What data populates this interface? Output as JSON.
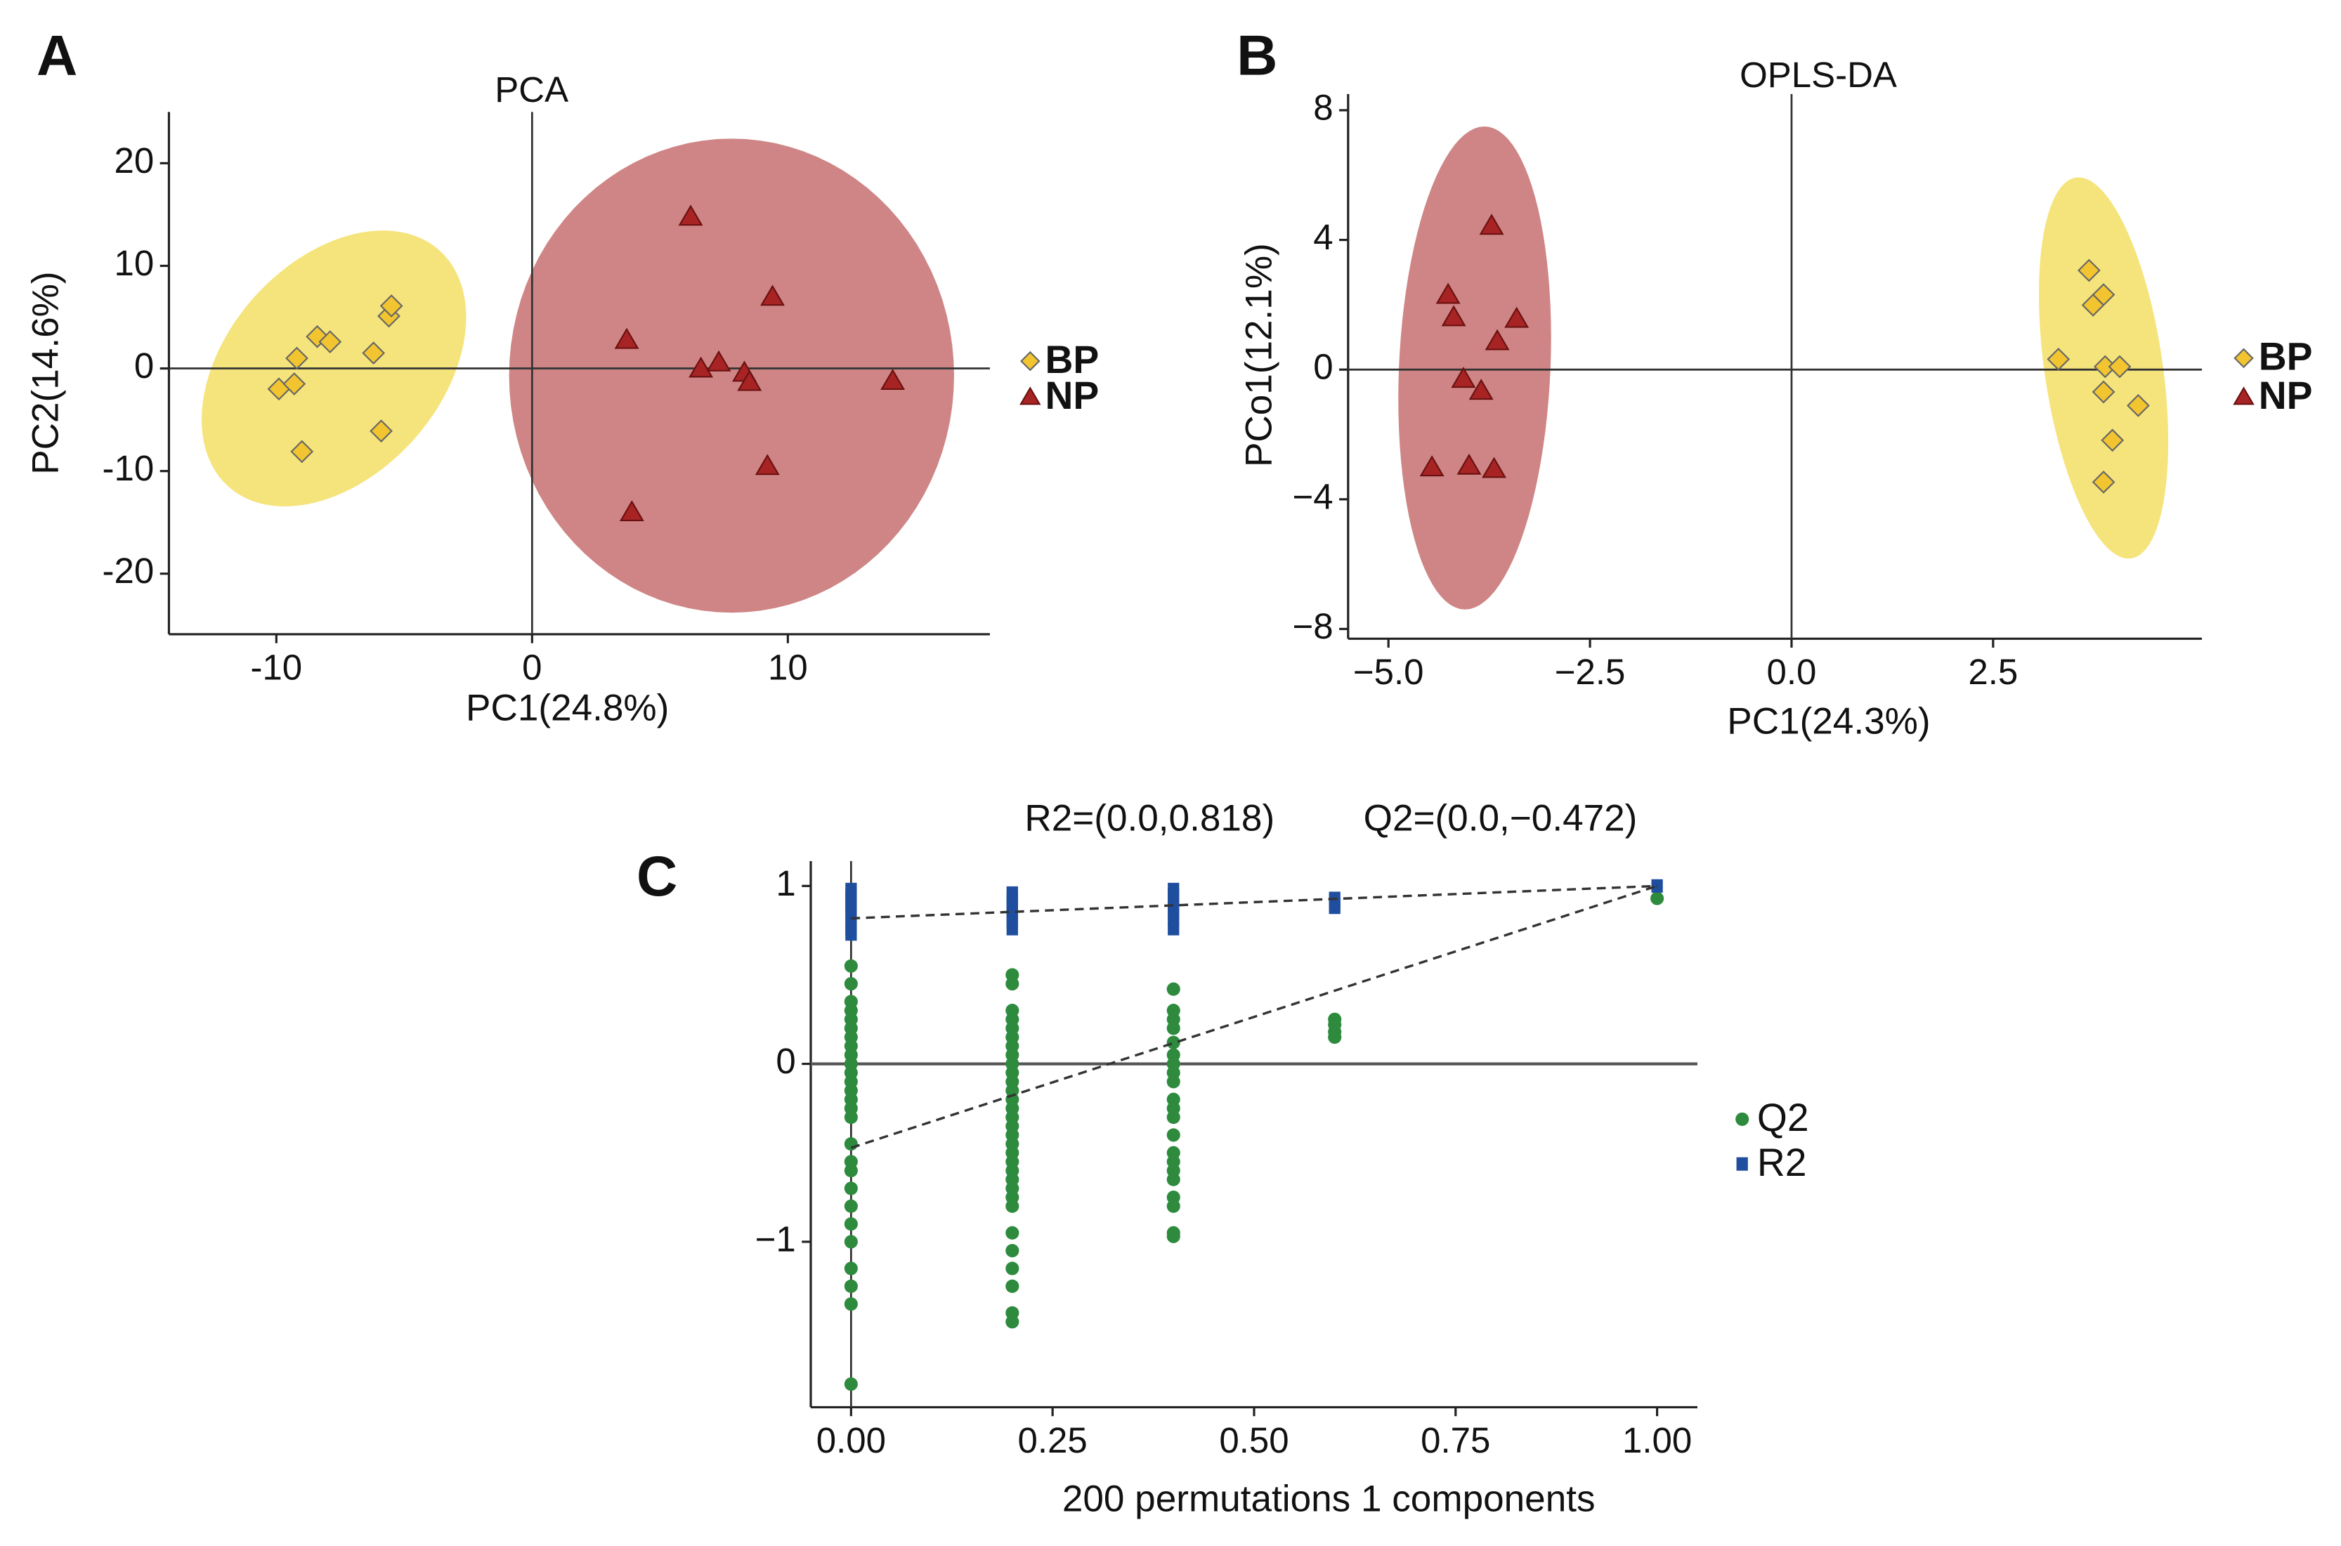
{
  "chart_data": [
    {
      "type": "scatter",
      "panel": "A",
      "title": "PCA",
      "x_label": "PC1(24.8%)",
      "y_label": "PC2(14.6%)",
      "xlim": [
        -14.2,
        17.9
      ],
      "ylim": [
        -25.9,
        25.0
      ],
      "xticks": [
        -10,
        0,
        10
      ],
      "yticks": [
        -20,
        -10,
        0,
        10,
        20
      ],
      "zero_lines": true,
      "legend": "right",
      "series": [
        {
          "name": "BP",
          "marker": "diamond",
          "color": "#f2c530",
          "ellipse_color": "#f5e47c",
          "ellipse": {
            "center": [
              -7.75,
              0
            ],
            "axis1": [
              4.5,
              10.5
            ],
            "axis2": [
              2.55,
              -8.4
            ]
          },
          "x": [
            -9.9,
            -9.3,
            -9.2,
            -8.4,
            -7.9,
            -6.2,
            -5.6,
            -5.5,
            -5.9,
            -9.0
          ],
          "values": [
            -2.0,
            -1.5,
            1.0,
            3.1,
            2.6,
            1.5,
            5.1,
            6.1,
            -6.1,
            -8.1
          ]
        },
        {
          "name": "NP",
          "marker": "triangle",
          "color": "#a82424",
          "ellipse_color": "#cf8585",
          "ellipse": {
            "center": [
              7.8,
              -0.7
            ],
            "axis1": [
              8.7,
              0
            ],
            "axis2": [
              0,
              23.1
            ]
          },
          "x": [
            6.2,
            3.7,
            9.4,
            6.6,
            7.3,
            8.3,
            8.5,
            14.1,
            9.2,
            3.9
          ],
          "values": [
            14.8,
            2.8,
            7.0,
            0,
            0.6,
            -0.4,
            -1.3,
            -1.2,
            -9.5,
            -14.0
          ]
        }
      ]
    },
    {
      "type": "scatter",
      "panel": "B",
      "title": "OPLS-DA",
      "x_label": "PC1(24.3%)",
      "y_label": "PCo1(12.1%)",
      "xlim": [
        -5.5,
        5.09
      ],
      "ylim": [
        -8.3,
        8.5
      ],
      "xticks": [
        {
          "value": -5,
          "label": "−5.0"
        },
        {
          "value": -2.5,
          "label": "−2.5"
        },
        {
          "value": 0,
          "label": "0.0"
        },
        {
          "value": 2.5,
          "label": "2.5"
        }
      ],
      "yticks": [
        {
          "value": -8,
          "label": "−8"
        },
        {
          "value": -4,
          "label": "−4"
        },
        0,
        4,
        8
      ],
      "zero_lines": true,
      "legend": "right",
      "series": [
        {
          "name": "BP",
          "marker": "diamond",
          "color": "#f2c530",
          "ellipse_color": "#f5e47c",
          "ellipse": {
            "center": [
              3.87,
              0.05
            ],
            "axis1": [
              0.74,
              0
            ],
            "axis2": [
              -0.31,
              5.88
            ]
          },
          "x": [
            3.69,
            3.74,
            3.87,
            3.31,
            3.89,
            4.07,
            3.87,
            4.3,
            3.98,
            3.87
          ],
          "values": [
            3.06,
            1.99,
            2.31,
            0.32,
            0.09,
            0.09,
            -0.69,
            -1.11,
            -2.18,
            -3.47
          ]
        },
        {
          "name": "NP",
          "marker": "triangle",
          "color": "#a82424",
          "ellipse_color": "#cf8585",
          "ellipse": {
            "center": [
              -3.93,
              0.05
            ],
            "axis1": [
              0.94,
              0
            ],
            "axis2": [
              0.12,
              7.45
            ]
          },
          "x": [
            -3.72,
            -4.26,
            -4.19,
            -3.41,
            -3.65,
            -4.07,
            -3.85,
            -4.46,
            -4.0,
            -3.69
          ],
          "values": [
            4.44,
            2.31,
            1.62,
            1.57,
            0.88,
            -0.28,
            -0.65,
            -3.01,
            -2.96,
            -3.06
          ]
        }
      ]
    },
    {
      "type": "scatter",
      "panel": "C",
      "annotations": [
        "R2=(0.0,0.818)",
        "Q2=(0.0,−0.472)"
      ],
      "x_label": "200 permutations 1 components",
      "xlim": [
        -0.05,
        1.05
      ],
      "ylim": [
        -1.93,
        1.14
      ],
      "xticks": [
        {
          "value": 0,
          "label": "0.00"
        },
        {
          "value": 0.25,
          "label": "0.25"
        },
        {
          "value": 0.5,
          "label": "0.50"
        },
        {
          "value": 0.75,
          "label": "0.75"
        },
        {
          "value": 1,
          "label": "1.00"
        }
      ],
      "yticks": [
        {
          "value": -1,
          "label": "−1"
        },
        0,
        1
      ],
      "zero_lines": true,
      "legend": "right",
      "fit_lines": [
        {
          "x": [
            0,
            1
          ],
          "y": [
            0.818,
            1
          ]
        },
        {
          "x": [
            0,
            1
          ],
          "y": [
            -0.472,
            1
          ]
        }
      ],
      "series": [
        {
          "name": "Q2",
          "marker": "circle",
          "color": "#2e8b3e",
          "x": [
            0,
            0,
            0,
            0,
            0,
            0,
            0,
            0,
            0,
            0,
            0,
            0,
            0,
            0,
            0,
            0,
            0,
            0,
            0,
            0,
            0,
            0,
            0,
            0,
            0,
            0,
            0,
            0.2,
            0.2,
            0.2,
            0.2,
            0.2,
            0.2,
            0.2,
            0.2,
            0.2,
            0.2,
            0.2,
            0.2,
            0.2,
            0.2,
            0.2,
            0.2,
            0.2,
            0.2,
            0.2,
            0.2,
            0.2,
            0.2,
            0.2,
            0.2,
            0.2,
            0.2,
            0.2,
            0.2,
            0.2,
            0.2,
            0.2,
            0.4,
            0.4,
            0.4,
            0.4,
            0.4,
            0.4,
            0.4,
            0.4,
            0.4,
            0.4,
            0.4,
            0.4,
            0.4,
            0.4,
            0.4,
            0.4,
            0.4,
            0.4,
            0.4,
            0.4,
            0.4,
            0.6,
            0.6,
            0.6,
            0.6,
            1
          ],
          "values": [
            0.55,
            0.45,
            0.35,
            0.3,
            0.25,
            0.2,
            0.15,
            0.1,
            0.05,
            0.0,
            -0.05,
            -0.1,
            -0.15,
            -0.2,
            -0.25,
            -0.3,
            -0.45,
            -0.55,
            -0.6,
            -0.7,
            -0.8,
            -0.9,
            -1.0,
            -1.15,
            -1.25,
            -1.35,
            -1.8,
            0.5,
            0.45,
            0.3,
            0.25,
            0.2,
            0.15,
            0.1,
            0.05,
            0,
            -0.05,
            -0.1,
            -0.15,
            -0.2,
            -0.25,
            -0.3,
            -0.35,
            -0.4,
            -0.45,
            -0.5,
            -0.55,
            -0.6,
            -0.65,
            -0.7,
            -0.75,
            -0.8,
            -0.95,
            -1.05,
            -1.15,
            -1.25,
            -1.4,
            -1.45,
            0.42,
            0.3,
            0.25,
            0.2,
            0.12,
            0.05,
            0,
            -0.05,
            -0.1,
            -0.2,
            -0.25,
            -0.3,
            -0.4,
            -0.5,
            -0.55,
            -0.6,
            -0.65,
            -0.75,
            -0.8,
            -0.95,
            -0.97,
            0.25,
            0.22,
            0.18,
            0.15,
            0.93
          ]
        },
        {
          "name": "R2",
          "marker": "square",
          "color": "#1f4e9e",
          "x": [
            0,
            0,
            0,
            0,
            0,
            0,
            0,
            0,
            0,
            0.2,
            0.2,
            0.2,
            0.2,
            0.2,
            0.2,
            0.2,
            0.4,
            0.4,
            0.4,
            0.4,
            0.4,
            0.4,
            0.4,
            0.6,
            0.6,
            0.6,
            1
          ],
          "values": [
            0.98,
            0.95,
            0.92,
            0.9,
            0.87,
            0.84,
            0.8,
            0.76,
            0.73,
            0.96,
            0.93,
            0.9,
            0.87,
            0.84,
            0.8,
            0.76,
            0.98,
            0.95,
            0.92,
            0.89,
            0.85,
            0.81,
            0.76,
            0.93,
            0.9,
            0.88,
            1.0
          ]
        }
      ]
    }
  ]
}
